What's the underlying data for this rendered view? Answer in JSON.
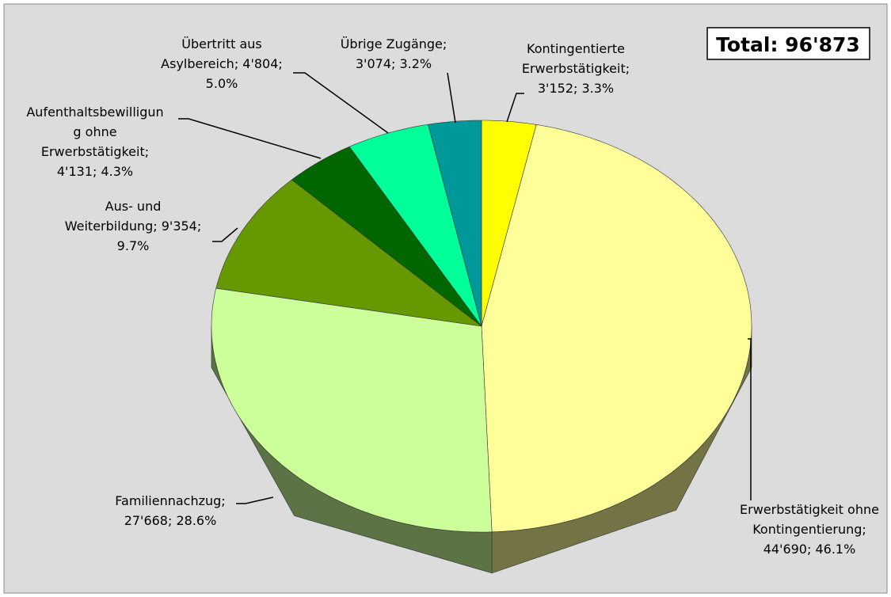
{
  "chart_data": {
    "type": "pie3d",
    "annotation": "Total: 96'873",
    "values": [
      3152,
      44690,
      27668,
      9354,
      4131,
      4804,
      3074
    ],
    "value_labels": [
      [
        "Kontingentierte",
        "Erwerbstätigkeit;",
        "3'152; 3.3%"
      ],
      [
        "Erwerbstätigkeit ohne",
        "Kontingentierung;",
        "44'690; 46.1%"
      ],
      [
        "Familiennachzug;",
        "27'668; 28.6%"
      ],
      [
        "Aus- und",
        "Weiterbildung; 9'354;",
        "9.7%"
      ],
      [
        "Aufenthaltsbewilligun",
        "g ohne",
        "Erwerbstätigkeit;",
        "4'131; 4.3%"
      ],
      [
        "Übertritt aus",
        "Asylbereich; 4'804;",
        "5.0%"
      ],
      [
        "Übrige Zugänge;",
        "3'074; 3.2%"
      ]
    ],
    "colors": [
      "#ffff00",
      "#ffff99",
      "#ccff99",
      "#669900",
      "#006600",
      "#00ff99",
      "#009999"
    ]
  }
}
